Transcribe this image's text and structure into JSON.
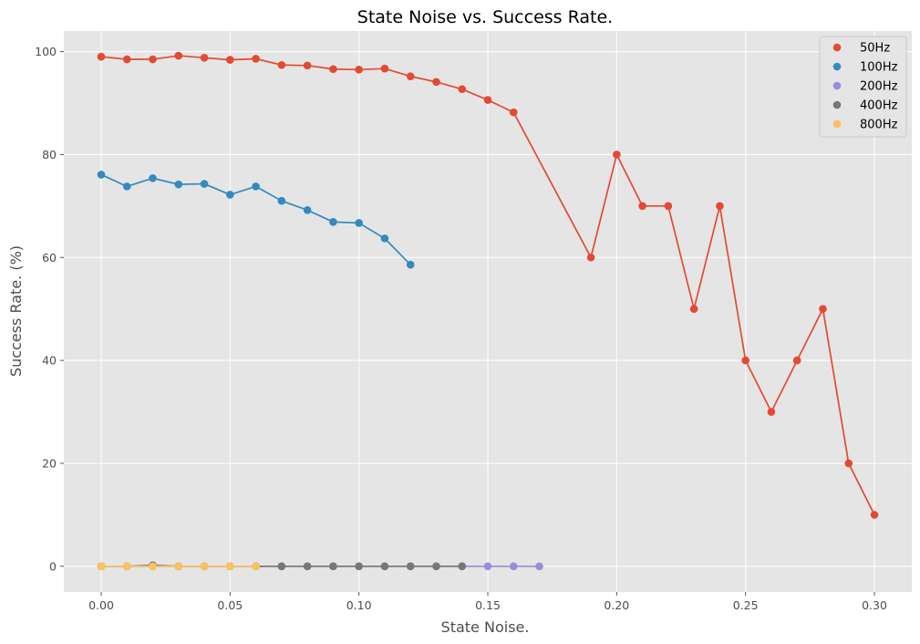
{
  "chart_data": {
    "type": "line",
    "title": "State Noise vs. Success Rate.",
    "xlabel": "State Noise.",
    "ylabel": "Success Rate. (%)",
    "xlim": [
      -0.0145,
      0.3145
    ],
    "ylim": [
      -5,
      104
    ],
    "xticks": [
      0.0,
      0.05,
      0.1,
      0.15,
      0.2,
      0.25,
      0.3
    ],
    "xtick_labels": [
      "0.00",
      "0.05",
      "0.10",
      "0.15",
      "0.20",
      "0.25",
      "0.30"
    ],
    "yticks": [
      0,
      20,
      40,
      60,
      80,
      100
    ],
    "ytick_labels": [
      "0",
      "20",
      "40",
      "60",
      "80",
      "100"
    ],
    "grid": true,
    "legend_position": "top-right",
    "series": [
      {
        "name": "50Hz",
        "color": "#E24A33",
        "x": [
          0.0,
          0.01,
          0.02,
          0.03,
          0.04,
          0.05,
          0.06,
          0.07,
          0.08,
          0.09,
          0.1,
          0.11,
          0.12,
          0.13,
          0.14,
          0.15,
          0.16,
          0.19,
          0.2,
          0.21,
          0.22,
          0.23,
          0.24,
          0.25,
          0.26,
          0.27,
          0.28,
          0.29,
          0.3
        ],
        "y": [
          99.0,
          98.5,
          98.5,
          99.2,
          98.8,
          98.4,
          98.6,
          97.4,
          97.3,
          96.6,
          96.5,
          96.7,
          95.2,
          94.1,
          92.7,
          90.6,
          88.2,
          60,
          80,
          70,
          70,
          50,
          70,
          40,
          30,
          40,
          50,
          20,
          10
        ]
      },
      {
        "name": "100Hz",
        "color": "#348ABD",
        "x": [
          0.0,
          0.01,
          0.02,
          0.03,
          0.04,
          0.05,
          0.06,
          0.07,
          0.08,
          0.09,
          0.1,
          0.11,
          0.12
        ],
        "y": [
          76.1,
          73.8,
          75.4,
          74.2,
          74.3,
          72.2,
          73.8,
          71.0,
          69.2,
          66.9,
          66.7,
          63.7,
          58.6
        ]
      },
      {
        "name": "200Hz",
        "color": "#988ED5",
        "x": [
          0.0,
          0.01,
          0.02,
          0.03,
          0.04,
          0.05,
          0.06,
          0.07,
          0.08,
          0.09,
          0.1,
          0.11,
          0.12,
          0.13,
          0.14,
          0.15,
          0.16,
          0.17
        ],
        "y": [
          0,
          0,
          0,
          0,
          0,
          0,
          0,
          0,
          0,
          0,
          0,
          0,
          0,
          0,
          0,
          0,
          0,
          0
        ]
      },
      {
        "name": "400Hz",
        "color": "#777777",
        "x": [
          0.0,
          0.01,
          0.02,
          0.03,
          0.04,
          0.05,
          0.06,
          0.07,
          0.08,
          0.09,
          0.1,
          0.11,
          0.12,
          0.13,
          0.14
        ],
        "y": [
          0,
          0,
          0.2,
          0,
          0,
          0,
          0,
          0,
          0,
          0,
          0,
          0,
          0,
          0,
          0
        ]
      },
      {
        "name": "800Hz",
        "color": "#FBC15E",
        "x": [
          0.0,
          0.01,
          0.02,
          0.03,
          0.04,
          0.05,
          0.06
        ],
        "y": [
          0,
          0,
          0,
          0,
          0,
          0,
          0
        ]
      }
    ]
  }
}
